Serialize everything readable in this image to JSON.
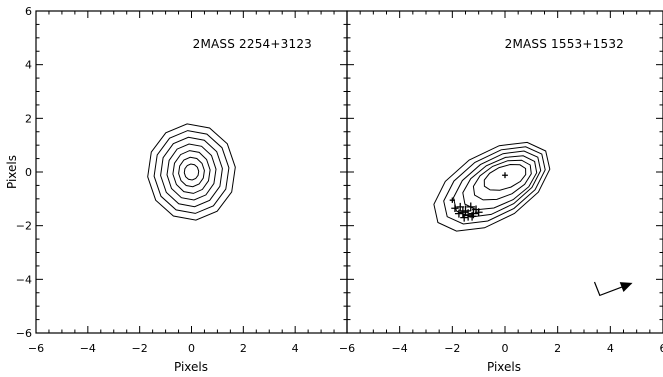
{
  "chart_data": [
    {
      "type": "contour",
      "title": "2MASS 2254+3123",
      "xlabel": "Pixels",
      "ylabel": "Pixels",
      "xlim": [
        -6,
        6
      ],
      "ylim": [
        -6,
        6
      ],
      "xticks": [
        -6,
        -4,
        -2,
        0,
        2,
        4
      ],
      "yticks": [
        -6,
        -4,
        -2,
        0,
        2,
        4,
        6
      ],
      "x_tick_labels": [
        "−6",
        "−4",
        "−2",
        "0",
        "2",
        "4"
      ],
      "y_tick_labels": [
        "−6",
        "−4",
        "−2",
        "0",
        "2",
        "4",
        "6"
      ],
      "grid": false,
      "contours": [
        {
          "cx": 0.0,
          "cy": 0.0,
          "rx": 1.7,
          "ry": 1.8,
          "rot": 0
        },
        {
          "cx": 0.0,
          "cy": 0.0,
          "rx": 1.45,
          "ry": 1.55,
          "rot": 0
        },
        {
          "cx": 0.0,
          "cy": 0.0,
          "rx": 1.2,
          "ry": 1.3,
          "rot": 0
        },
        {
          "cx": 0.0,
          "cy": 0.0,
          "rx": 0.95,
          "ry": 1.05,
          "rot": 0
        },
        {
          "cx": 0.0,
          "cy": 0.0,
          "rx": 0.72,
          "ry": 0.8,
          "rot": 0
        },
        {
          "cx": 0.0,
          "cy": 0.0,
          "rx": 0.5,
          "ry": 0.55,
          "rot": 0
        },
        {
          "cx": 0.0,
          "cy": 0.0,
          "rx": 0.28,
          "ry": 0.3,
          "rot": 0
        }
      ],
      "markers": []
    },
    {
      "type": "contour",
      "title": "2MASS 1553+1532",
      "xlabel": "Pixels",
      "ylabel": "",
      "xlim": [
        -6,
        6
      ],
      "ylim": [
        -6,
        6
      ],
      "xticks": [
        -6,
        -4,
        -2,
        0,
        2,
        4,
        6
      ],
      "yticks": [
        -6,
        -4,
        -2,
        0,
        2,
        4,
        6
      ],
      "x_tick_labels": [
        "−6",
        "−4",
        "−2",
        "0",
        "2",
        "4",
        "6"
      ],
      "y_tick_labels": [],
      "grid": false,
      "contours": [
        {
          "cx": -0.5,
          "cy": -0.55,
          "rx": 2.45,
          "ry": 1.3,
          "rot": 30
        },
        {
          "cx": -0.4,
          "cy": -0.5,
          "rx": 2.15,
          "ry": 1.12,
          "rot": 30
        },
        {
          "cx": -0.3,
          "cy": -0.45,
          "rx": 1.85,
          "ry": 0.95,
          "rot": 30
        },
        {
          "cx": -0.2,
          "cy": -0.4,
          "rx": 1.55,
          "ry": 0.8,
          "rot": 28
        },
        {
          "cx": -0.1,
          "cy": -0.3,
          "rx": 1.2,
          "ry": 0.62,
          "rot": 25
        },
        {
          "cx": 0.0,
          "cy": -0.2,
          "rx": 0.85,
          "ry": 0.42,
          "rot": 20
        }
      ],
      "markers": [
        {
          "x": 0.0,
          "y": -0.12,
          "size": 0.22
        },
        {
          "x": -1.5,
          "y": -1.45,
          "size": 0.4
        },
        {
          "x": -1.2,
          "y": -1.55,
          "size": 0.35
        },
        {
          "x": -1.7,
          "y": -1.3,
          "size": 0.3
        },
        {
          "x": -1.4,
          "y": -1.6,
          "size": 0.42
        },
        {
          "x": -1.1,
          "y": -1.4,
          "size": 0.3
        },
        {
          "x": -1.6,
          "y": -1.5,
          "size": 0.38
        },
        {
          "x": -1.3,
          "y": -1.3,
          "size": 0.33
        },
        {
          "x": -1.9,
          "y": -1.35,
          "size": 0.28
        },
        {
          "x": -1.0,
          "y": -1.5,
          "size": 0.3
        },
        {
          "x": -1.55,
          "y": -1.7,
          "size": 0.3
        },
        {
          "x": -1.25,
          "y": -1.65,
          "size": 0.32
        },
        {
          "x": -1.75,
          "y": -1.55,
          "size": 0.3
        },
        {
          "x": -2.0,
          "y": -1.05,
          "size": 0.2
        }
      ],
      "arrow": {
        "path": [
          [
            3.4,
            -4.1
          ],
          [
            3.6,
            -4.6
          ],
          [
            4.8,
            -4.15
          ]
        ]
      }
    }
  ]
}
